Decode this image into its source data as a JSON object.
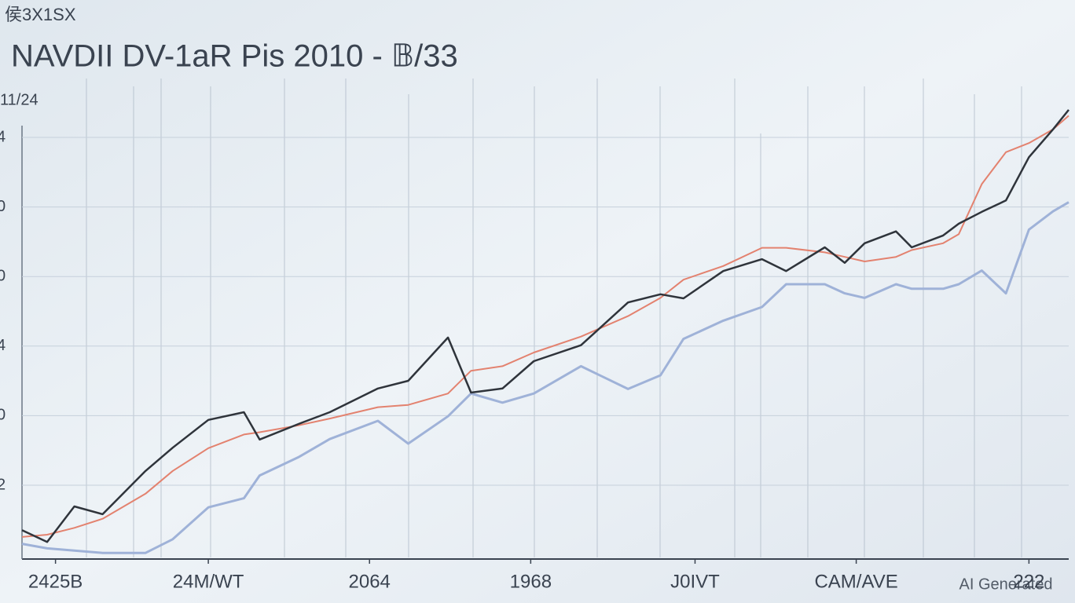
{
  "chart_data": {
    "type": "line",
    "corner_label": "侯3X1SX",
    "title": "NAVDII DV-1aR Pis 2010 - 𝔹/33",
    "subtitle": "11/24",
    "y_labels": [
      "4",
      "0",
      "0",
      "4",
      "0",
      "2"
    ],
    "watermark": "AI Generated",
    "x": [
      0,
      2.4,
      5.0,
      7.7,
      11.8,
      14.4,
      17.8,
      21.2,
      22.7,
      26.4,
      29.4,
      34.0,
      36.9,
      40.7,
      42.9,
      45.9,
      48.9,
      53.4,
      57.9,
      61.0,
      63.2,
      67.0,
      70.7,
      73.0,
      76.7,
      78.6,
      80.5,
      83.5,
      85.0,
      88.0,
      89.5,
      91.7,
      94.0,
      96.2,
      98.5,
      100
    ],
    "xlim": [
      0,
      100
    ],
    "xticks": [
      {
        "value": 3.2,
        "label": "2425B"
      },
      {
        "value": 17.8,
        "label": "24M/WT"
      },
      {
        "value": 33.2,
        "label": "2064"
      },
      {
        "value": 48.6,
        "label": "1968"
      },
      {
        "value": 64.3,
        "label": "J0IVT"
      },
      {
        "value": 79.7,
        "label": "CAM/AVE"
      },
      {
        "value": 96.2,
        "label": "222"
      }
    ],
    "ylim": [
      0,
      100
    ],
    "series": [
      {
        "color": "#9fb2d8",
        "width": 3,
        "values": [
          3,
          2,
          1.5,
          1,
          1,
          4,
          11,
          13,
          18,
          22,
          26,
          30,
          25,
          31,
          36,
          34,
          36,
          42,
          37,
          40,
          48,
          52,
          55,
          60,
          60,
          58,
          57,
          60,
          59,
          59,
          60,
          63,
          58,
          72,
          76,
          78
        ]
      },
      {
        "color": "#e3826f",
        "width": 2,
        "values": [
          4.5,
          5,
          6.5,
          8.5,
          14,
          19,
          24,
          27,
          27.5,
          29,
          30.5,
          33,
          33.5,
          36,
          41,
          42,
          45,
          48.5,
          53,
          57,
          61,
          64,
          68,
          68,
          67,
          66,
          65,
          66,
          67.5,
          69,
          71,
          82,
          89,
          91,
          94,
          97
        ]
      },
      {
        "color": "#2f343b",
        "width": 2.5,
        "values": [
          6,
          3.4,
          11.2,
          9.5,
          19,
          24.1,
          30.2,
          31.9,
          25.9,
          29.3,
          31.9,
          37.1,
          38.8,
          48.3,
          36.2,
          37.1,
          43.1,
          46.6,
          56,
          57.8,
          56.9,
          62.9,
          65.5,
          62.9,
          68.1,
          64.7,
          69,
          71.6,
          68.1,
          70.7,
          73.3,
          75.9,
          78.4,
          87.9,
          94,
          98.3
        ]
      }
    ]
  }
}
